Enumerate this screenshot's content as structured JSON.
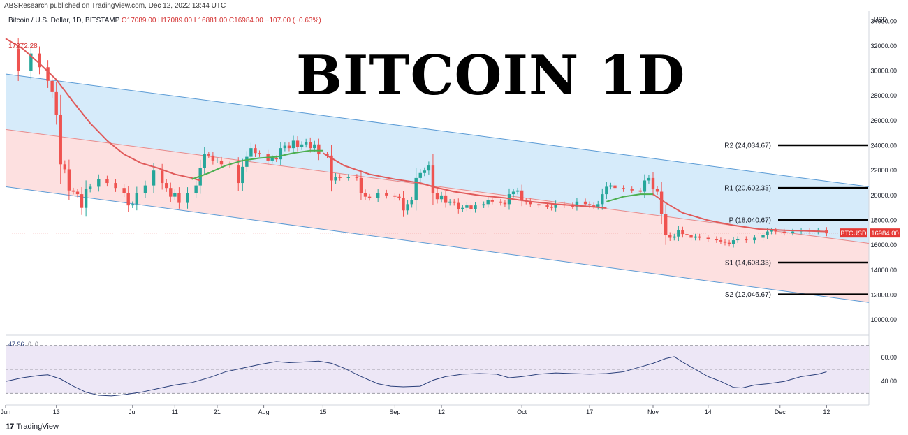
{
  "header": {
    "published": "ABSResearch published on TradingView.com, Dec 12, 2022 13:44 UTC",
    "symbol": "Bitcoin / U.S. Dollar, 1D, BITSTAMP",
    "ohlc": "O17089.00  H17089.00  L16881.00  C16984.00  −107.00 (−0.63%)"
  },
  "overlay_title": "BITCOIN 1D",
  "footer": {
    "brand": "TradingView",
    "logo_icon": "tradingview-logo-icon"
  },
  "colors": {
    "bull": "#26a69a",
    "bear": "#ef5350",
    "ma_red": "#e05a5a",
    "ma_green": "#4caf50",
    "channel_line": "#5b9bd5",
    "upper_fill": "#d6ebfa",
    "lower_fill": "#fde0e0",
    "price_tag": "#e53935",
    "rsi_line": "#2a3f7a",
    "rsi_band": "#ede7f6"
  },
  "chart_data": {
    "type": "candlestick",
    "currency_label": "USD",
    "y_ticks": [
      "34000.00",
      "32000.00",
      "30000.00",
      "28000.00",
      "26000.00",
      "24000.00",
      "22000.00",
      "20000.00",
      "18000.00",
      "16000.00",
      "14000.00",
      "12000.00",
      "10000.00"
    ],
    "ylim": [
      9000,
      34800
    ],
    "x_ticks": [
      {
        "label": "Jun",
        "day": 0
      },
      {
        "label": "13",
        "day": 12
      },
      {
        "label": "Jul",
        "day": 30
      },
      {
        "label": "11",
        "day": 40
      },
      {
        "label": "21",
        "day": 50
      },
      {
        "label": "Aug",
        "day": 61
      },
      {
        "label": "15",
        "day": 75
      },
      {
        "label": "Sep",
        "day": 92
      },
      {
        "label": "12",
        "day": 103
      },
      {
        "label": "Oct",
        "day": 122
      },
      {
        "label": "17",
        "day": 138
      },
      {
        "label": "Nov",
        "day": 153
      },
      {
        "label": "14",
        "day": 166
      },
      {
        "label": "Dec",
        "day": 183
      },
      {
        "label": "12",
        "day": 194
      }
    ],
    "high_label": "17272.28",
    "current_price": {
      "symbol": "BTCUSD",
      "value": "16984.00",
      "price": 16984
    },
    "channel": {
      "upper": [
        {
          "day": 0,
          "price": 29750
        },
        {
          "day": 204,
          "price": 20700
        }
      ],
      "middle": [
        {
          "day": 0,
          "price": 25300
        },
        {
          "day": 204,
          "price": 16150
        }
      ],
      "lower": [
        {
          "day": 0,
          "price": 20700
        },
        {
          "day": 204,
          "price": 11400
        }
      ]
    },
    "pivots": [
      {
        "label": "R2 (24,034.67)",
        "price": 24034.67
      },
      {
        "label": "R1 (20,602.33)",
        "price": 20602.33
      },
      {
        "label": "P (18,040.67)",
        "price": 18040.67
      },
      {
        "label": "S1 (14,608.33)",
        "price": 14608.33
      },
      {
        "label": "S2 (12,046.67)",
        "price": 12046.67
      }
    ],
    "close_points": [
      [
        0,
        31800
      ],
      [
        3,
        30000
      ],
      [
        6,
        31400
      ],
      [
        8,
        30300
      ],
      [
        10,
        29200
      ],
      [
        11,
        28300
      ],
      [
        12,
        26500
      ],
      [
        13,
        22500
      ],
      [
        14,
        22100
      ],
      [
        15,
        20400
      ],
      [
        16,
        20300
      ],
      [
        17,
        20100
      ],
      [
        18,
        19000
      ],
      [
        19,
        20500
      ],
      [
        20,
        20700
      ],
      [
        22,
        21300
      ],
      [
        24,
        21000
      ],
      [
        26,
        20600
      ],
      [
        28,
        20200
      ],
      [
        29,
        19200
      ],
      [
        30,
        19300
      ],
      [
        31,
        20200
      ],
      [
        33,
        20800
      ],
      [
        35,
        22000
      ],
      [
        37,
        21000
      ],
      [
        38,
        20600
      ],
      [
        39,
        19900
      ],
      [
        40,
        20200
      ],
      [
        41,
        19400
      ],
      [
        43,
        20200
      ],
      [
        45,
        20800
      ],
      [
        46,
        22200
      ],
      [
        47,
        23300
      ],
      [
        48,
        23200
      ],
      [
        49,
        22800
      ],
      [
        50,
        22800
      ],
      [
        51,
        22500
      ],
      [
        53,
        22400
      ],
      [
        55,
        21000
      ],
      [
        56,
        22300
      ],
      [
        57,
        23100
      ],
      [
        58,
        23800
      ],
      [
        59,
        23400
      ],
      [
        60,
        23300
      ],
      [
        62,
        22800
      ],
      [
        63,
        23000
      ],
      [
        64,
        22900
      ],
      [
        65,
        23800
      ],
      [
        66,
        24000
      ],
      [
        67,
        23800
      ],
      [
        68,
        24400
      ],
      [
        69,
        23900
      ],
      [
        70,
        24100
      ],
      [
        71,
        24300
      ],
      [
        72,
        23800
      ],
      [
        73,
        24100
      ],
      [
        74,
        23300
      ],
      [
        76,
        23200
      ],
      [
        77,
        21200
      ],
      [
        78,
        21500
      ],
      [
        79,
        21400
      ],
      [
        81,
        21500
      ],
      [
        83,
        21400
      ],
      [
        84,
        20200
      ],
      [
        85,
        19900
      ],
      [
        86,
        19800
      ],
      [
        88,
        20200
      ],
      [
        90,
        20000
      ],
      [
        92,
        19900
      ],
      [
        93,
        19800
      ],
      [
        94,
        18800
      ],
      [
        95,
        19300
      ],
      [
        96,
        19600
      ],
      [
        97,
        21400
      ],
      [
        98,
        21800
      ],
      [
        99,
        22000
      ],
      [
        100,
        22400
      ],
      [
        101,
        20200
      ],
      [
        102,
        19700
      ],
      [
        103,
        20000
      ],
      [
        104,
        19400
      ],
      [
        105,
        19500
      ],
      [
        106,
        19400
      ],
      [
        107,
        18900
      ],
      [
        108,
        19000
      ],
      [
        109,
        19200
      ],
      [
        110,
        18900
      ],
      [
        111,
        19200
      ],
      [
        113,
        19300
      ],
      [
        114,
        19600
      ],
      [
        115,
        19500
      ],
      [
        117,
        19400
      ],
      [
        118,
        19300
      ],
      [
        119,
        20100
      ],
      [
        120,
        20300
      ],
      [
        121,
        20400
      ],
      [
        122,
        19600
      ],
      [
        123,
        19500
      ],
      [
        124,
        19300
      ],
      [
        126,
        19200
      ],
      [
        128,
        19100
      ],
      [
        129,
        19000
      ],
      [
        130,
        19300
      ],
      [
        132,
        19200
      ],
      [
        134,
        19100
      ],
      [
        135,
        19500
      ],
      [
        137,
        19300
      ],
      [
        138,
        19200
      ],
      [
        139,
        19100
      ],
      [
        140,
        19300
      ],
      [
        141,
        20100
      ],
      [
        142,
        20700
      ],
      [
        143,
        20800
      ],
      [
        144,
        20600
      ],
      [
        146,
        20500
      ],
      [
        148,
        20400
      ],
      [
        150,
        20300
      ],
      [
        151,
        21200
      ],
      [
        152,
        21400
      ],
      [
        153,
        20500
      ],
      [
        154,
        20300
      ],
      [
        155,
        18500
      ],
      [
        156,
        16800
      ],
      [
        157,
        16600
      ],
      [
        158,
        16700
      ],
      [
        159,
        17200
      ],
      [
        160,
        16900
      ],
      [
        161,
        16800
      ],
      [
        162,
        16600
      ],
      [
        163,
        16700
      ],
      [
        164,
        16600
      ],
      [
        166,
        16500
      ],
      [
        168,
        16400
      ],
      [
        169,
        16300
      ],
      [
        170,
        16200
      ],
      [
        171,
        16100
      ],
      [
        172,
        16400
      ],
      [
        173,
        16500
      ],
      [
        175,
        16400
      ],
      [
        177,
        16600
      ],
      [
        179,
        16800
      ],
      [
        180,
        17100
      ],
      [
        181,
        17200
      ],
      [
        182,
        17100
      ],
      [
        184,
        17000
      ],
      [
        186,
        17100
      ],
      [
        188,
        17200
      ],
      [
        190,
        17100
      ],
      [
        192,
        17200
      ],
      [
        194,
        16984
      ]
    ],
    "ma_red_points": [
      [
        0,
        32600
      ],
      [
        4,
        31800
      ],
      [
        8,
        30600
      ],
      [
        12,
        29300
      ],
      [
        16,
        27500
      ],
      [
        20,
        25800
      ],
      [
        24,
        24400
      ],
      [
        28,
        23300
      ],
      [
        32,
        22600
      ],
      [
        36,
        22200
      ],
      [
        40,
        21700
      ],
      [
        44,
        21400
      ],
      [
        46,
        21200
      ]
    ],
    "ma_green_points": [
      [
        44,
        21300
      ],
      [
        48,
        21800
      ],
      [
        52,
        22400
      ],
      [
        56,
        22800
      ],
      [
        60,
        23000
      ],
      [
        64,
        23100
      ],
      [
        68,
        23400
      ],
      [
        72,
        23600
      ],
      [
        75,
        23600
      ]
    ],
    "ma_red_points_2": [
      [
        75,
        23400
      ],
      [
        80,
        22400
      ],
      [
        86,
        21700
      ],
      [
        92,
        21300
      ],
      [
        98,
        21000
      ],
      [
        101,
        20700
      ],
      [
        106,
        20300
      ],
      [
        112,
        20000
      ],
      [
        118,
        19800
      ],
      [
        124,
        19500
      ],
      [
        130,
        19300
      ],
      [
        138,
        19100
      ],
      [
        142,
        19000
      ]
    ],
    "ma_green_points_2": [
      [
        142,
        19500
      ],
      [
        146,
        19900
      ],
      [
        150,
        20100
      ],
      [
        153,
        20100
      ]
    ],
    "ma_red_points_3": [
      [
        153,
        20100
      ],
      [
        156,
        19400
      ],
      [
        160,
        18600
      ],
      [
        166,
        18000
      ],
      [
        172,
        17600
      ],
      [
        178,
        17300
      ],
      [
        184,
        17200
      ],
      [
        190,
        17150
      ],
      [
        194,
        17100
      ]
    ],
    "rsi": {
      "label": "47.96",
      "label_extra_1": "0",
      "label_extra_2": "0",
      "y_ticks": [
        "60.00",
        "40.00"
      ],
      "ylim": [
        25,
        75
      ],
      "bands": {
        "upper": 70,
        "middle": 50,
        "lower": 30
      },
      "points": [
        [
          0,
          40
        ],
        [
          4,
          43
        ],
        [
          8,
          45
        ],
        [
          10,
          45.5
        ],
        [
          13,
          42
        ],
        [
          16,
          36
        ],
        [
          19,
          31
        ],
        [
          22,
          28.5
        ],
        [
          25,
          28
        ],
        [
          28,
          29
        ],
        [
          32,
          31
        ],
        [
          36,
          34
        ],
        [
          40,
          37
        ],
        [
          44,
          39
        ],
        [
          48,
          43
        ],
        [
          52,
          48
        ],
        [
          56,
          51
        ],
        [
          60,
          54
        ],
        [
          64,
          56.5
        ],
        [
          67,
          55.5
        ],
        [
          70,
          56
        ],
        [
          74,
          56.8
        ],
        [
          77,
          55
        ],
        [
          80,
          51
        ],
        [
          84,
          44
        ],
        [
          88,
          38
        ],
        [
          91,
          36
        ],
        [
          94,
          35.5
        ],
        [
          98,
          36
        ],
        [
          101,
          41
        ],
        [
          104,
          44
        ],
        [
          108,
          46
        ],
        [
          112,
          46.5
        ],
        [
          116,
          46
        ],
        [
          119,
          43
        ],
        [
          122,
          44
        ],
        [
          126,
          46
        ],
        [
          130,
          47
        ],
        [
          134,
          46.5
        ],
        [
          138,
          46
        ],
        [
          142,
          46.5
        ],
        [
          146,
          48
        ],
        [
          150,
          52
        ],
        [
          153,
          55
        ],
        [
          156,
          59
        ],
        [
          158,
          60.5
        ],
        [
          160,
          56
        ],
        [
          163,
          50
        ],
        [
          166,
          44
        ],
        [
          169,
          40
        ],
        [
          172,
          35
        ],
        [
          174,
          34.5
        ],
        [
          177,
          37
        ],
        [
          180,
          38
        ],
        [
          184,
          40
        ],
        [
          188,
          44
        ],
        [
          192,
          46
        ],
        [
          194,
          47.96
        ]
      ]
    }
  }
}
